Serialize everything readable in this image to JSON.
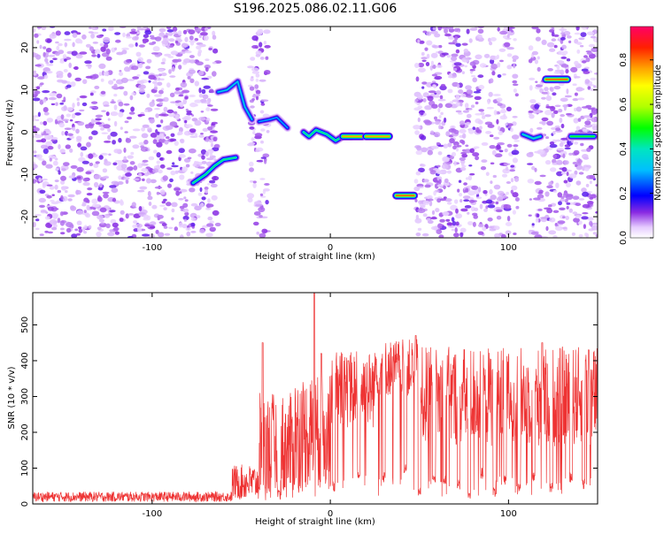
{
  "title": "S196.2025.086.02.11.G06",
  "chart_data": [
    {
      "type": "heatmap",
      "xlabel": "Height of straight line (km)",
      "ylabel": "Frequency (Hz)",
      "xlim": [
        -167,
        150
      ],
      "ylim": [
        -25,
        25
      ],
      "xticks": [
        -100,
        0,
        100
      ],
      "yticks": [
        -20,
        -10,
        0,
        10,
        20
      ],
      "colorbar": {
        "label": "Normalized spectral amplitude",
        "range": [
          0,
          0.95
        ],
        "ticks": [
          "0.0",
          "0.2",
          "0.4",
          "0.6",
          "0.8"
        ]
      },
      "noise_regions_x": [
        [
          -167,
          -63
        ],
        [
          -45,
          -35
        ],
        [
          48,
          105
        ],
        [
          112,
          150
        ]
      ],
      "tracks": [
        {
          "points": [
            [
              -77,
              -12
            ],
            [
              -70,
              -10
            ],
            [
              -65,
              -8
            ],
            [
              -60,
              -6.5
            ],
            [
              -53,
              -6
            ]
          ],
          "amplitude": 0.45
        },
        {
          "points": [
            [
              -63,
              9.5
            ],
            [
              -58,
              10
            ],
            [
              -52,
              12
            ],
            [
              -48,
              6
            ],
            [
              -44,
              3
            ]
          ],
          "amplitude": 0.35
        },
        {
          "points": [
            [
              -40,
              2.5
            ],
            [
              -34,
              3
            ],
            [
              -30,
              3.5
            ],
            [
              -24,
              1
            ]
          ],
          "amplitude": 0.3
        },
        {
          "points": [
            [
              -15,
              0
            ],
            [
              -12,
              -1
            ],
            [
              -8,
              0.5
            ],
            [
              -2,
              -0.5
            ],
            [
              3,
              -2
            ],
            [
              7,
              -1
            ],
            [
              12,
              -1
            ]
          ],
          "amplitude": 0.45
        },
        {
          "points": [
            [
              7,
              -1
            ],
            [
              18,
              -1
            ]
          ],
          "amplitude": 0.8
        },
        {
          "points": [
            [
              20,
              -1
            ],
            [
              33,
              -1
            ]
          ],
          "amplitude": 0.8
        },
        {
          "points": [
            [
              37,
              -15
            ],
            [
              47,
              -15
            ]
          ],
          "amplitude": 0.85
        },
        {
          "points": [
            [
              108,
              -0.5
            ],
            [
              111,
              -1
            ],
            [
              114,
              -1.5
            ],
            [
              118,
              -1
            ]
          ],
          "amplitude": 0.4
        },
        {
          "points": [
            [
              121,
              12.5
            ],
            [
              133,
              12.5
            ]
          ],
          "amplitude": 0.85
        },
        {
          "points": [
            [
              135,
              -1
            ],
            [
              148,
              -1
            ]
          ],
          "amplitude": 0.5
        }
      ]
    },
    {
      "type": "line",
      "xlabel": "Height of straight line (km)",
      "ylabel": "SNR (10 * v/v)",
      "xlim": [
        -167,
        150
      ],
      "ylim": [
        0,
        590
      ],
      "xticks": [
        -100,
        0,
        100
      ],
      "yticks": [
        0,
        100,
        200,
        300,
        400,
        500
      ],
      "series_color": "#ee3333",
      "segments": [
        {
          "x": [
            -167,
            -55
          ],
          "base": 20,
          "noise": 14
        },
        {
          "x": [
            -55,
            -40
          ],
          "base": 60,
          "noise": 50
        },
        {
          "x": [
            -40,
            -20
          ],
          "base": 160,
          "noise": 150
        },
        {
          "x": [
            -20,
            0
          ],
          "base": 200,
          "noise": 160
        },
        {
          "x": [
            0,
            25
          ],
          "base": 320,
          "noise": 110
        },
        {
          "x": [
            25,
            50
          ],
          "base": 380,
          "noise": 80
        },
        {
          "x": [
            50,
            150
          ],
          "base": 300,
          "noise": 140
        }
      ],
      "peaks": [
        [
          -38,
          450
        ],
        [
          -9,
          590
        ],
        [
          -5,
          420
        ],
        [
          10,
          400
        ],
        [
          48,
          470
        ],
        [
          119,
          450
        ],
        [
          145,
          430
        ]
      ],
      "dips": [
        [
          -29,
          10
        ],
        [
          2,
          35
        ],
        [
          16,
          70
        ],
        [
          30,
          60
        ],
        [
          42,
          80
        ],
        [
          50,
          20
        ],
        [
          58,
          50
        ],
        [
          64,
          50
        ],
        [
          72,
          40
        ],
        [
          78,
          10
        ],
        [
          85,
          70
        ],
        [
          92,
          20
        ],
        [
          98,
          50
        ],
        [
          106,
          30
        ],
        [
          114,
          60
        ],
        [
          124,
          30
        ],
        [
          135,
          60
        ],
        [
          142,
          40
        ]
      ]
    }
  ]
}
